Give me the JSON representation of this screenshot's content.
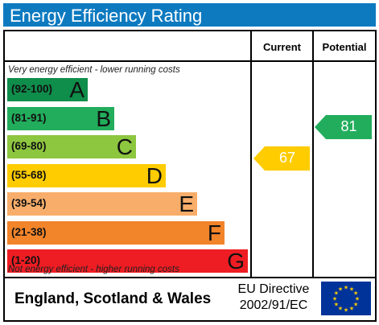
{
  "title": "Energy Efficiency Rating",
  "columns": {
    "current": "Current",
    "potential": "Potential"
  },
  "notes": {
    "top": "Very energy efficient - lower running costs",
    "bottom": "Not energy efficient - higher running costs"
  },
  "bands": [
    {
      "range": "(92-100)",
      "letter": "A",
      "color": "#0f8d4b"
    },
    {
      "range": "(81-91)",
      "letter": "B",
      "color": "#22ad5c"
    },
    {
      "range": "(69-80)",
      "letter": "C",
      "color": "#8dc63f"
    },
    {
      "range": "(55-68)",
      "letter": "D",
      "color": "#ffcc00"
    },
    {
      "range": "(39-54)",
      "letter": "E",
      "color": "#f8ae6a"
    },
    {
      "range": "(21-38)",
      "letter": "F",
      "color": "#f2842a"
    },
    {
      "range": "(1-20)",
      "letter": "G",
      "color": "#ee1d23"
    }
  ],
  "current": {
    "value": "67",
    "color": "#ffcc00"
  },
  "potential": {
    "value": "81",
    "color": "#22ad5c"
  },
  "footer": {
    "region": "England, Scotland & Wales",
    "directive_line1": "EU Directive",
    "directive_line2": "2002/91/EC",
    "flag_icon": "eu-flag-icon",
    "flag_color": "#003399",
    "star_color": "#ffcc00"
  }
}
